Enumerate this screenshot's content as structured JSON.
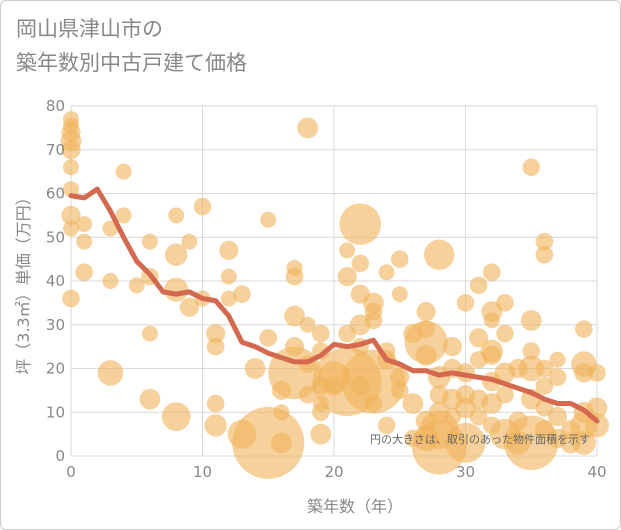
{
  "title": {
    "line1": "岡山県津山市の",
    "line2": "築年数別中古戸建て価格"
  },
  "chart_data": {
    "type": "scatter",
    "xlabel": "築年数（年）",
    "ylabel": "坪（3.3㎡）単価（万円）",
    "xlim": [
      0,
      40
    ],
    "ylim": [
      0,
      80
    ],
    "xticks": [
      0,
      10,
      20,
      30,
      40
    ],
    "yticks": [
      0,
      10,
      20,
      30,
      40,
      50,
      60,
      70,
      80
    ],
    "grid": true,
    "note": "円の大きさは、取引のあった物件面積を示す",
    "colors": {
      "bubble": "#f0b35a",
      "line": "#d4694f",
      "grid": "#d9d9d9"
    },
    "trend": {
      "x": [
        0,
        1,
        2,
        3,
        4,
        5,
        6,
        7,
        8,
        9,
        10,
        11,
        12,
        13,
        14,
        15,
        16,
        17,
        18,
        19,
        20,
        21,
        22,
        23,
        24,
        25,
        26,
        27,
        28,
        29,
        30,
        31,
        32,
        33,
        34,
        35,
        36,
        37,
        38,
        39,
        40
      ],
      "y": [
        59.5,
        59,
        61,
        56,
        50,
        44.5,
        41.5,
        37.5,
        37,
        37.5,
        36,
        35.5,
        32,
        26,
        25,
        23.5,
        22.5,
        21.5,
        21.5,
        23,
        25.5,
        25,
        25.5,
        26.5,
        22,
        21,
        19.5,
        19.5,
        18.5,
        19,
        18.5,
        18,
        17.5,
        16.5,
        15.5,
        14.5,
        13,
        12,
        12,
        10.5,
        8
      ]
    },
    "points": [
      {
        "x": 0,
        "y": 77,
        "s": 1
      },
      {
        "x": 0,
        "y": 75.5,
        "s": 1
      },
      {
        "x": 0,
        "y": 74,
        "s": 1.2
      },
      {
        "x": 0,
        "y": 72,
        "s": 1.3
      },
      {
        "x": 0,
        "y": 70,
        "s": 1.2
      },
      {
        "x": 0,
        "y": 66,
        "s": 1
      },
      {
        "x": 0,
        "y": 61,
        "s": 1
      },
      {
        "x": 0,
        "y": 55,
        "s": 1.2
      },
      {
        "x": 0,
        "y": 52,
        "s": 1
      },
      {
        "x": 0,
        "y": 36,
        "s": 1.1
      },
      {
        "x": 1,
        "y": 53,
        "s": 1
      },
      {
        "x": 1,
        "y": 49,
        "s": 1
      },
      {
        "x": 1,
        "y": 42,
        "s": 1.1
      },
      {
        "x": 3,
        "y": 40,
        "s": 1
      },
      {
        "x": 3,
        "y": 52,
        "s": 1
      },
      {
        "x": 3,
        "y": 19,
        "s": 1.6
      },
      {
        "x": 4,
        "y": 65,
        "s": 1
      },
      {
        "x": 4,
        "y": 55,
        "s": 1
      },
      {
        "x": 5,
        "y": 39,
        "s": 1
      },
      {
        "x": 6,
        "y": 49,
        "s": 1
      },
      {
        "x": 6,
        "y": 41,
        "s": 1.1
      },
      {
        "x": 6,
        "y": 28,
        "s": 1
      },
      {
        "x": 6,
        "y": 13,
        "s": 1.3
      },
      {
        "x": 8,
        "y": 55,
        "s": 1
      },
      {
        "x": 8,
        "y": 46,
        "s": 1.4
      },
      {
        "x": 8,
        "y": 38,
        "s": 1.5
      },
      {
        "x": 8,
        "y": 9,
        "s": 1.8
      },
      {
        "x": 9,
        "y": 49,
        "s": 1
      },
      {
        "x": 9,
        "y": 34,
        "s": 1.2
      },
      {
        "x": 10,
        "y": 57,
        "s": 1.1
      },
      {
        "x": 10,
        "y": 36,
        "s": 1
      },
      {
        "x": 11,
        "y": 28,
        "s": 1.2
      },
      {
        "x": 11,
        "y": 25,
        "s": 1.1
      },
      {
        "x": 11,
        "y": 12,
        "s": 1.1
      },
      {
        "x": 11,
        "y": 7,
        "s": 1.4
      },
      {
        "x": 12,
        "y": 47,
        "s": 1.2
      },
      {
        "x": 12,
        "y": 41,
        "s": 1
      },
      {
        "x": 12,
        "y": 36,
        "s": 1
      },
      {
        "x": 13,
        "y": 37,
        "s": 1.1
      },
      {
        "x": 13,
        "y": 5,
        "s": 1.8
      },
      {
        "x": 14,
        "y": 20,
        "s": 1.3
      },
      {
        "x": 15,
        "y": 54,
        "s": 1
      },
      {
        "x": 15,
        "y": 27,
        "s": 1.1
      },
      {
        "x": 15,
        "y": 3,
        "s": 4.5
      },
      {
        "x": 16,
        "y": 15,
        "s": 1.2
      },
      {
        "x": 16,
        "y": 10,
        "s": 1
      },
      {
        "x": 16,
        "y": 3,
        "s": 1.3
      },
      {
        "x": 17,
        "y": 43,
        "s": 1
      },
      {
        "x": 17,
        "y": 41,
        "s": 1.1
      },
      {
        "x": 17,
        "y": 32,
        "s": 1.3
      },
      {
        "x": 17,
        "y": 25,
        "s": 1.2
      },
      {
        "x": 17,
        "y": 19,
        "s": 3.3
      },
      {
        "x": 18,
        "y": 75,
        "s": 1.3
      },
      {
        "x": 18,
        "y": 30,
        "s": 1
      },
      {
        "x": 18,
        "y": 21,
        "s": 1.1
      },
      {
        "x": 18,
        "y": 14,
        "s": 1.1
      },
      {
        "x": 19,
        "y": 28,
        "s": 1.1
      },
      {
        "x": 19,
        "y": 24,
        "s": 1.1
      },
      {
        "x": 19,
        "y": 16,
        "s": 1.1
      },
      {
        "x": 19,
        "y": 12,
        "s": 1
      },
      {
        "x": 19,
        "y": 10,
        "s": 1.1
      },
      {
        "x": 19,
        "y": 5,
        "s": 1.3
      },
      {
        "x": 20,
        "y": 18,
        "s": 2
      },
      {
        "x": 20,
        "y": 16,
        "s": 1.2
      },
      {
        "x": 21,
        "y": 17,
        "s": 4.3
      },
      {
        "x": 21,
        "y": 47,
        "s": 1
      },
      {
        "x": 21,
        "y": 41,
        "s": 1.2
      },
      {
        "x": 21,
        "y": 28,
        "s": 1.1
      },
      {
        "x": 22,
        "y": 53,
        "s": 2.6
      },
      {
        "x": 22,
        "y": 44,
        "s": 1.1
      },
      {
        "x": 22,
        "y": 37,
        "s": 1.2
      },
      {
        "x": 22,
        "y": 30,
        "s": 1.3
      },
      {
        "x": 22,
        "y": 25,
        "s": 1.1
      },
      {
        "x": 22,
        "y": 16,
        "s": 1.2
      },
      {
        "x": 23,
        "y": 35,
        "s": 1.3
      },
      {
        "x": 23,
        "y": 33,
        "s": 1.1
      },
      {
        "x": 23,
        "y": 31,
        "s": 1.1
      },
      {
        "x": 23,
        "y": 17,
        "s": 4
      },
      {
        "x": 23,
        "y": 12,
        "s": 1.1
      },
      {
        "x": 24,
        "y": 42,
        "s": 1
      },
      {
        "x": 24,
        "y": 24,
        "s": 1.1
      },
      {
        "x": 24,
        "y": 22,
        "s": 1.2
      },
      {
        "x": 24,
        "y": 7,
        "s": 1.1
      },
      {
        "x": 25,
        "y": 45,
        "s": 1.1
      },
      {
        "x": 25,
        "y": 37,
        "s": 1
      },
      {
        "x": 25,
        "y": 18,
        "s": 1.2
      },
      {
        "x": 25,
        "y": 15,
        "s": 1.1
      },
      {
        "x": 26,
        "y": 28,
        "s": 1.2
      },
      {
        "x": 26,
        "y": 12,
        "s": 1.3
      },
      {
        "x": 26,
        "y": 4,
        "s": 1.1
      },
      {
        "x": 27,
        "y": 33,
        "s": 1.2
      },
      {
        "x": 27,
        "y": 29,
        "s": 1.1
      },
      {
        "x": 27,
        "y": 26,
        "s": 2.7
      },
      {
        "x": 27,
        "y": 23,
        "s": 1.3
      },
      {
        "x": 27,
        "y": 8,
        "s": 1.3
      },
      {
        "x": 27,
        "y": 4,
        "s": 1.6
      },
      {
        "x": 28,
        "y": 46,
        "s": 1.9
      },
      {
        "x": 28,
        "y": 18,
        "s": 1.4
      },
      {
        "x": 28,
        "y": 14,
        "s": 1.2
      },
      {
        "x": 28,
        "y": 10,
        "s": 1.3
      },
      {
        "x": 28,
        "y": 6,
        "s": 2.4
      },
      {
        "x": 28,
        "y": 2,
        "s": 3.4
      },
      {
        "x": 29,
        "y": 25,
        "s": 1.2
      },
      {
        "x": 29,
        "y": 20,
        "s": 1.2
      },
      {
        "x": 29,
        "y": 13,
        "s": 1.3
      },
      {
        "x": 29,
        "y": 9,
        "s": 1.1
      },
      {
        "x": 30,
        "y": 35,
        "s": 1.1
      },
      {
        "x": 30,
        "y": 19,
        "s": 1.2
      },
      {
        "x": 30,
        "y": 14,
        "s": 1.2
      },
      {
        "x": 30,
        "y": 11,
        "s": 1.3
      },
      {
        "x": 30,
        "y": 3,
        "s": 2.5
      },
      {
        "x": 31,
        "y": 39,
        "s": 1.1
      },
      {
        "x": 31,
        "y": 27,
        "s": 1.2
      },
      {
        "x": 31,
        "y": 22,
        "s": 1.1
      },
      {
        "x": 31,
        "y": 13,
        "s": 1.2
      },
      {
        "x": 31,
        "y": 9,
        "s": 1.1
      },
      {
        "x": 32,
        "y": 42,
        "s": 1.1
      },
      {
        "x": 32,
        "y": 33,
        "s": 1.3
      },
      {
        "x": 32,
        "y": 31,
        "s": 1
      },
      {
        "x": 32,
        "y": 24,
        "s": 1.4
      },
      {
        "x": 32,
        "y": 23,
        "s": 1.2
      },
      {
        "x": 32,
        "y": 17,
        "s": 1.2
      },
      {
        "x": 32,
        "y": 12,
        "s": 1.3
      },
      {
        "x": 32,
        "y": 7,
        "s": 1.1
      },
      {
        "x": 33,
        "y": 35,
        "s": 1.1
      },
      {
        "x": 33,
        "y": 28,
        "s": 1.1
      },
      {
        "x": 33,
        "y": 19,
        "s": 1.3
      },
      {
        "x": 33,
        "y": 14,
        "s": 1.1
      },
      {
        "x": 33,
        "y": 5,
        "s": 1.9
      },
      {
        "x": 34,
        "y": 20,
        "s": 1.2
      },
      {
        "x": 34,
        "y": 8,
        "s": 1.2
      },
      {
        "x": 34,
        "y": 3,
        "s": 1.5
      },
      {
        "x": 35,
        "y": 66,
        "s": 1.1
      },
      {
        "x": 35,
        "y": 31,
        "s": 1.3
      },
      {
        "x": 35,
        "y": 24,
        "s": 1.1
      },
      {
        "x": 35,
        "y": 20,
        "s": 1.6
      },
      {
        "x": 35,
        "y": 13,
        "s": 1.3
      },
      {
        "x": 35,
        "y": 3,
        "s": 3.4
      },
      {
        "x": 36,
        "y": 49,
        "s": 1.1
      },
      {
        "x": 36,
        "y": 46,
        "s": 1.1
      },
      {
        "x": 36,
        "y": 20,
        "s": 1.1
      },
      {
        "x": 36,
        "y": 16,
        "s": 1.1
      },
      {
        "x": 36,
        "y": 11,
        "s": 1.1
      },
      {
        "x": 36,
        "y": 6,
        "s": 1.2
      },
      {
        "x": 37,
        "y": 22,
        "s": 1
      },
      {
        "x": 37,
        "y": 18,
        "s": 1.1
      },
      {
        "x": 37,
        "y": 9,
        "s": 1.2
      },
      {
        "x": 37,
        "y": 4,
        "s": 1.2
      },
      {
        "x": 38,
        "y": 6,
        "s": 1.2
      },
      {
        "x": 38,
        "y": 3,
        "s": 1.3
      },
      {
        "x": 39,
        "y": 29,
        "s": 1.1
      },
      {
        "x": 39,
        "y": 21,
        "s": 1.6
      },
      {
        "x": 39,
        "y": 19,
        "s": 1.2
      },
      {
        "x": 39,
        "y": 10,
        "s": 1.3
      },
      {
        "x": 39,
        "y": 7,
        "s": 1.7
      },
      {
        "x": 39,
        "y": 3,
        "s": 1.5
      },
      {
        "x": 40,
        "y": 19,
        "s": 1.1
      },
      {
        "x": 40,
        "y": 11,
        "s": 1.3
      },
      {
        "x": 40,
        "y": 7,
        "s": 1.5
      }
    ]
  }
}
